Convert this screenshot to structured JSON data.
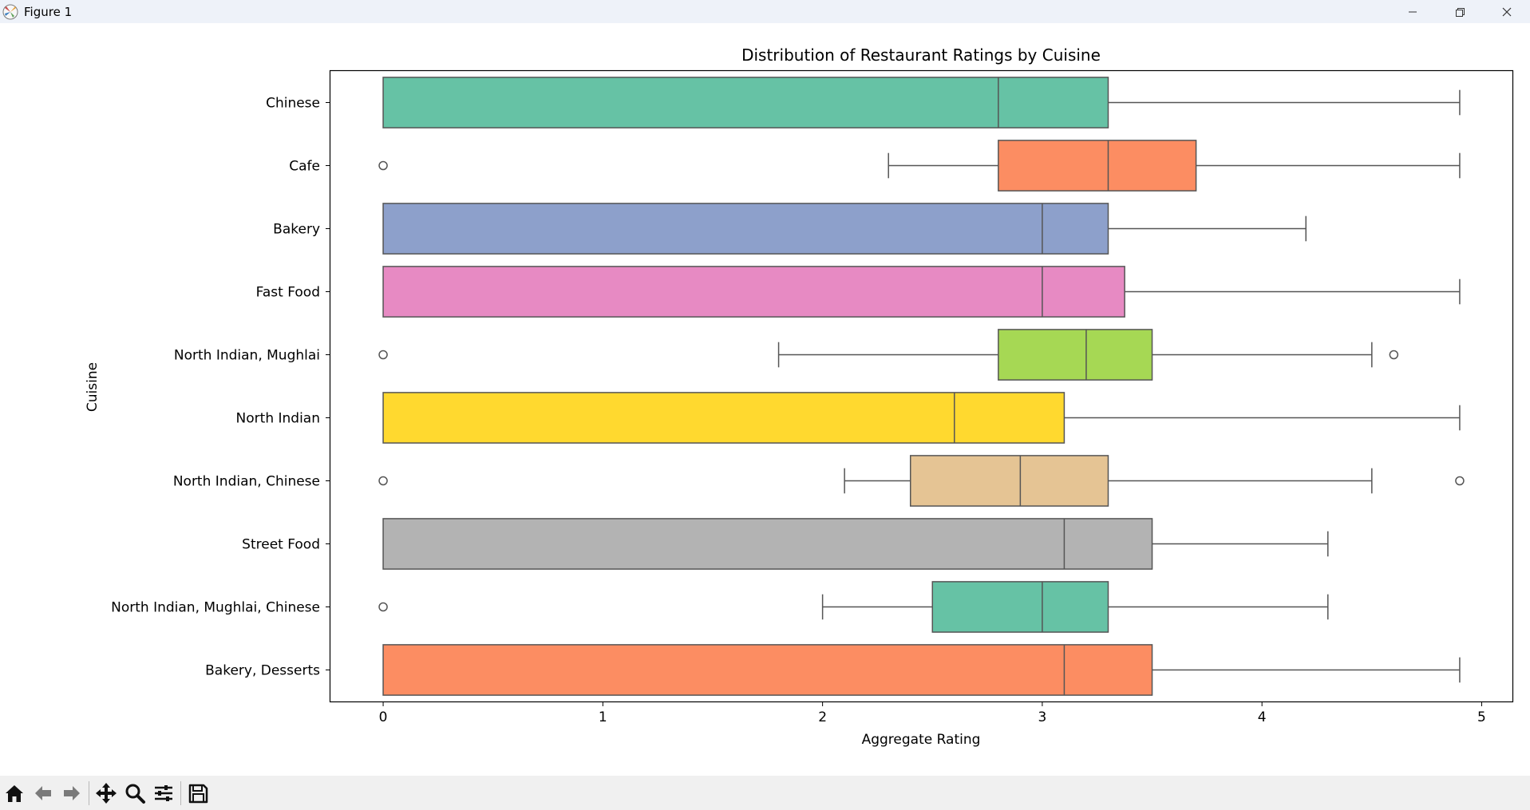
{
  "window": {
    "title": "Figure 1",
    "icon": "matplotlib-logo-icon",
    "controls": [
      "minimize-icon",
      "restore-icon",
      "close-icon"
    ]
  },
  "toolbar": {
    "tools": [
      {
        "name": "home",
        "icon": "home-icon"
      },
      {
        "name": "back",
        "icon": "arrow-left-icon"
      },
      {
        "name": "forward",
        "icon": "arrow-right-icon"
      },
      {
        "name": "pan",
        "icon": "move-icon"
      },
      {
        "name": "zoom",
        "icon": "zoom-icon"
      },
      {
        "name": "configure",
        "icon": "sliders-icon"
      },
      {
        "name": "save",
        "icon": "save-icon"
      }
    ]
  },
  "chart_data": {
    "type": "boxplot",
    "orientation": "horizontal",
    "title": "Distribution of Restaurant Ratings by Cuisine",
    "xlabel": "Aggregate Rating",
    "ylabel": "Cuisine",
    "xlim": [
      -0.24,
      5.14
    ],
    "xticks": [
      0,
      1,
      2,
      3,
      4,
      5
    ],
    "grid": false,
    "legend": "none",
    "palette": [
      "#66c2a5",
      "#fc8d62",
      "#8da0cb",
      "#e78ac3",
      "#a6d854",
      "#ffd92f",
      "#e5c494",
      "#b3b3b3"
    ],
    "edge_color": "#555555",
    "categories": [
      "Chinese",
      "Cafe",
      "Bakery",
      "Fast Food",
      "North Indian, Mughlai",
      "North Indian",
      "North Indian, Chinese",
      "Street Food",
      "North Indian, Mughlai, Chinese",
      "Bakery, Desserts"
    ],
    "boxes": [
      {
        "category": "Chinese",
        "whislo": 0,
        "q1": 0,
        "med": 2.8,
        "q3": 3.3,
        "whishi": 4.9,
        "fliers": []
      },
      {
        "category": "Cafe",
        "whislo": 2.3,
        "q1": 2.8,
        "med": 3.3,
        "q3": 3.7,
        "whishi": 4.9,
        "fliers": [
          0
        ]
      },
      {
        "category": "Bakery",
        "whislo": 0,
        "q1": 0,
        "med": 3.0,
        "q3": 3.3,
        "whishi": 4.2,
        "fliers": []
      },
      {
        "category": "Fast Food",
        "whislo": 0,
        "q1": 0,
        "med": 3.0,
        "q3": 3.375,
        "whishi": 4.9,
        "fliers": []
      },
      {
        "category": "North Indian, Mughlai",
        "whislo": 1.8,
        "q1": 2.8,
        "med": 3.2,
        "q3": 3.5,
        "whishi": 4.5,
        "fliers": [
          0,
          4.6
        ]
      },
      {
        "category": "North Indian",
        "whislo": 0,
        "q1": 0,
        "med": 2.6,
        "q3": 3.1,
        "whishi": 4.9,
        "fliers": []
      },
      {
        "category": "North Indian, Chinese",
        "whislo": 2.1,
        "q1": 2.4,
        "med": 2.9,
        "q3": 3.3,
        "whishi": 4.5,
        "fliers": [
          0,
          4.9
        ]
      },
      {
        "category": "Street Food",
        "whislo": 0,
        "q1": 0,
        "med": 3.1,
        "q3": 3.5,
        "whishi": 4.3,
        "fliers": []
      },
      {
        "category": "North Indian, Mughlai, Chinese",
        "whislo": 2.0,
        "q1": 2.5,
        "med": 3.0,
        "q3": 3.3,
        "whishi": 4.3,
        "fliers": [
          0
        ]
      },
      {
        "category": "Bakery, Desserts",
        "whislo": 0,
        "q1": 0,
        "med": 3.1,
        "q3": 3.5,
        "whishi": 4.9,
        "fliers": []
      }
    ]
  }
}
